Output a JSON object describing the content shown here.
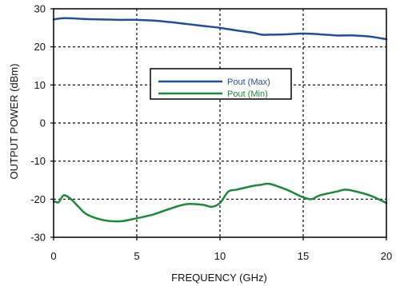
{
  "chart_data": {
    "type": "line",
    "xlabel": "FREQUENCY (GHz)",
    "ylabel": "OUTPUT POWER (dBm)",
    "xlim": [
      0,
      20
    ],
    "ylim": [
      -30,
      30
    ],
    "x_ticks": [
      0,
      5,
      10,
      15,
      20
    ],
    "y_ticks": [
      -30,
      -20,
      -10,
      0,
      10,
      20,
      30
    ],
    "grid": true,
    "legend_position": "center",
    "series": [
      {
        "name": "Pout (Max)",
        "color": "#1f4e9e",
        "x": [
          0,
          0.5,
          1,
          2,
          3,
          4,
          5,
          6,
          7,
          8,
          9,
          10,
          11,
          12,
          12.5,
          13,
          14,
          15,
          16,
          17,
          17.5,
          18,
          19,
          20
        ],
        "y": [
          27.2,
          27.5,
          27.5,
          27.3,
          27.2,
          27.1,
          27.1,
          26.9,
          26.5,
          26.0,
          25.5,
          25.0,
          24.3,
          23.7,
          23.2,
          23.2,
          23.3,
          23.5,
          23.3,
          23.0,
          23.0,
          23.0,
          22.7,
          22.0
        ]
      },
      {
        "name": "Pout (Min)",
        "color": "#1a8a3a",
        "x": [
          0,
          0.3,
          0.6,
          1,
          1.5,
          2,
          3,
          4,
          5,
          6,
          7,
          8,
          9,
          9.5,
          10,
          10.5,
          11,
          12,
          12.5,
          13,
          14,
          14.5,
          15,
          15.5,
          16,
          17,
          17.5,
          18,
          19,
          20
        ],
        "y": [
          -20.5,
          -20.8,
          -19.0,
          -19.8,
          -22.0,
          -24.0,
          -25.5,
          -25.8,
          -25.0,
          -24.0,
          -22.5,
          -21.3,
          -21.5,
          -22.0,
          -21.0,
          -18.0,
          -17.5,
          -16.5,
          -16.2,
          -16.0,
          -17.5,
          -18.5,
          -19.5,
          -20.0,
          -19.0,
          -18.0,
          -17.5,
          -17.8,
          -19.0,
          -21.0
        ]
      }
    ]
  }
}
